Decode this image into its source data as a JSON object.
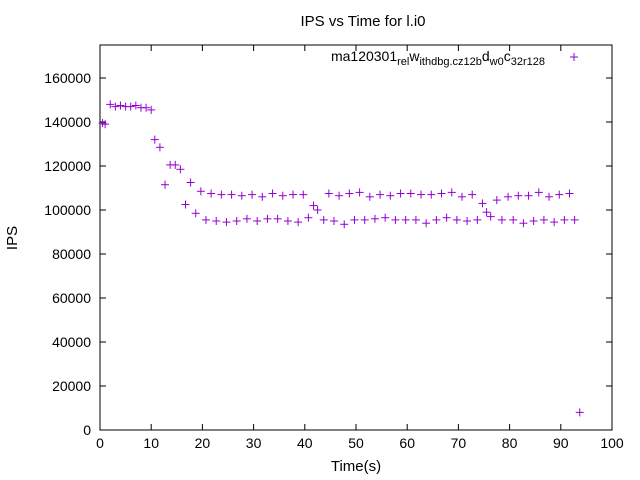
{
  "chart_data": {
    "type": "scatter",
    "title": "IPS vs Time for l.i0",
    "xlabel": "Time(s)",
    "ylabel": "IPS",
    "xlim": [
      0,
      100
    ],
    "ylim": [
      0,
      175000
    ],
    "xticks": [
      0,
      10,
      20,
      30,
      40,
      50,
      60,
      70,
      80,
      90,
      100
    ],
    "yticks": [
      0,
      20000,
      40000,
      60000,
      80000,
      100000,
      120000,
      140000,
      160000
    ],
    "grid": false,
    "legend_position": "top-right",
    "series": [
      {
        "name": "ma120301_rel_withdbg.cz12b_dw0_c32r128",
        "legend_parts": [
          {
            "text": "ma120301",
            "sub": false
          },
          {
            "text": "rel",
            "sub": true
          },
          {
            "text": "w",
            "sub": false
          },
          {
            "text": "ithdbg.cz12b",
            "sub": true
          },
          {
            "text": "d",
            "sub": false
          },
          {
            "text": "w0",
            "sub": true
          },
          {
            "text": "c",
            "sub": false
          },
          {
            "text": "32r128",
            "sub": true
          }
        ],
        "color": "#9400d3",
        "marker": "plus",
        "points": [
          [
            0.5,
            139500
          ],
          [
            1,
            139000
          ],
          [
            2,
            148000
          ],
          [
            3,
            147000
          ],
          [
            4,
            147500
          ],
          [
            5,
            147000
          ],
          [
            6,
            147000
          ],
          [
            7,
            147500
          ],
          [
            8,
            146500
          ],
          [
            9,
            146500
          ],
          [
            10,
            145500
          ],
          [
            10.7,
            132000
          ],
          [
            11.7,
            128500
          ],
          [
            12.7,
            111500
          ],
          [
            13.7,
            120500
          ],
          [
            14.7,
            120500
          ],
          [
            15.7,
            118500
          ],
          [
            16.7,
            102500
          ],
          [
            17.7,
            112500
          ],
          [
            18.7,
            98500
          ],
          [
            19.7,
            108500
          ],
          [
            20.7,
            95500
          ],
          [
            21.7,
            107500
          ],
          [
            22.7,
            95000
          ],
          [
            23.7,
            107000
          ],
          [
            24.7,
            94500
          ],
          [
            25.7,
            107000
          ],
          [
            26.7,
            95000
          ],
          [
            27.7,
            106500
          ],
          [
            28.7,
            96000
          ],
          [
            29.7,
            107000
          ],
          [
            30.7,
            95000
          ],
          [
            31.7,
            106000
          ],
          [
            32.7,
            96000
          ],
          [
            33.7,
            107500
          ],
          [
            34.7,
            96000
          ],
          [
            35.7,
            106500
          ],
          [
            36.7,
            95000
          ],
          [
            37.7,
            107000
          ],
          [
            38.7,
            94500
          ],
          [
            39.7,
            107000
          ],
          [
            40.7,
            96500
          ],
          [
            41.7,
            102000
          ],
          [
            42.5,
            100000
          ],
          [
            43.7,
            95500
          ],
          [
            44.7,
            107500
          ],
          [
            45.7,
            95000
          ],
          [
            46.7,
            106500
          ],
          [
            47.7,
            93500
          ],
          [
            48.7,
            107500
          ],
          [
            49.7,
            95500
          ],
          [
            50.7,
            108000
          ],
          [
            51.7,
            95500
          ],
          [
            52.7,
            106000
          ],
          [
            53.7,
            96000
          ],
          [
            54.7,
            107000
          ],
          [
            55.7,
            96500
          ],
          [
            56.7,
            106500
          ],
          [
            57.7,
            95500
          ],
          [
            58.7,
            107500
          ],
          [
            59.7,
            95500
          ],
          [
            60.7,
            107500
          ],
          [
            61.7,
            95500
          ],
          [
            62.7,
            107000
          ],
          [
            63.7,
            94000
          ],
          [
            64.7,
            107000
          ],
          [
            65.7,
            95500
          ],
          [
            66.7,
            107500
          ],
          [
            67.7,
            96500
          ],
          [
            68.7,
            108000
          ],
          [
            69.7,
            95500
          ],
          [
            70.7,
            106000
          ],
          [
            71.7,
            95000
          ],
          [
            72.7,
            107000
          ],
          [
            73.7,
            95500
          ],
          [
            74.7,
            103000
          ],
          [
            75.5,
            99000
          ],
          [
            76.3,
            97000
          ],
          [
            77.5,
            104500
          ],
          [
            78.5,
            95500
          ],
          [
            79.7,
            106000
          ],
          [
            80.7,
            95500
          ],
          [
            81.7,
            106500
          ],
          [
            82.7,
            94000
          ],
          [
            83.7,
            106500
          ],
          [
            84.7,
            95000
          ],
          [
            85.7,
            108000
          ],
          [
            86.7,
            95500
          ],
          [
            87.7,
            106000
          ],
          [
            88.7,
            94500
          ],
          [
            89.7,
            107000
          ],
          [
            90.7,
            95500
          ],
          [
            91.7,
            107500
          ],
          [
            92.7,
            95500
          ],
          [
            93.7,
            8000
          ]
        ]
      }
    ]
  }
}
